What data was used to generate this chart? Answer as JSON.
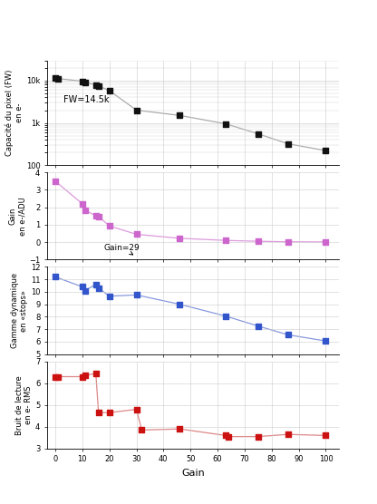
{
  "fw_x": [
    0,
    1,
    10,
    11,
    15,
    16,
    20,
    30,
    46,
    63,
    75,
    86,
    100
  ],
  "fw_y": [
    11500,
    11200,
    9700,
    9100,
    7900,
    7500,
    5800,
    2000,
    1500,
    950,
    550,
    320,
    220
  ],
  "gain_adu_x": [
    0,
    10,
    11,
    15,
    16,
    20,
    30,
    46,
    63,
    75,
    86,
    100
  ],
  "gain_adu_y": [
    3.5,
    2.2,
    1.85,
    1.5,
    1.47,
    0.93,
    0.45,
    0.22,
    0.1,
    0.05,
    0.02,
    0.01
  ],
  "dr_x": [
    0,
    10,
    11,
    15,
    16,
    20,
    30,
    46,
    63,
    75,
    86,
    100
  ],
  "dr_y": [
    11.2,
    10.4,
    10.1,
    10.6,
    10.3,
    9.65,
    9.75,
    9.0,
    8.05,
    7.25,
    6.55,
    6.05
  ],
  "rn_x": [
    0,
    1,
    10,
    11,
    15,
    16,
    20,
    30,
    32,
    46,
    63,
    64,
    75,
    86,
    100
  ],
  "rn_y": [
    6.3,
    6.3,
    6.3,
    6.35,
    6.45,
    4.65,
    4.65,
    4.8,
    3.85,
    3.9,
    3.6,
    3.55,
    3.55,
    3.65,
    3.6
  ],
  "fw_color": "#111111",
  "gain_adu_color": "#cc66cc",
  "gain_adu_line_color": "#dd99dd",
  "dr_color": "#3355cc",
  "dr_line_color": "#8899dd",
  "rn_color": "#cc1111",
  "rn_line_color": "#dd8888",
  "fw_line_color": "#aaaaaa",
  "fw_annotation": "FW=14.5k",
  "gain_annotation": "Gain=29",
  "xlabel": "Gain",
  "ylabel1": "Capacité du pixel (FW)\nen e-",
  "ylabel2": "Gain\nen e-/ADU",
  "ylabel3": "Gamme dynamique\nen «stops»",
  "ylabel4": "Bruit de lecture\nen e- RMS",
  "ylim1_log": [
    100,
    30000
  ],
  "ylim2": [
    -1,
    4
  ],
  "ylim3": [
    5,
    12
  ],
  "ylim4": [
    3,
    7
  ],
  "xlim": [
    -3,
    105
  ],
  "fw_yticks_labels": [
    "100",
    "1k",
    "10k"
  ],
  "fw_yticks_vals": [
    100,
    1000,
    10000
  ],
  "dr_yticks": [
    5,
    6,
    7,
    8,
    9,
    10,
    11,
    12
  ],
  "rn_yticks": [
    3,
    4,
    5,
    6,
    7
  ],
  "gain_yticks": [
    -1,
    0,
    1,
    2,
    3,
    4
  ],
  "xticks": [
    0,
    10,
    20,
    30,
    40,
    50,
    60,
    70,
    80,
    90,
    100
  ],
  "grid_color": "#cccccc",
  "grid_lw": 0.4,
  "marker_size": 18,
  "line_width": 0.9
}
